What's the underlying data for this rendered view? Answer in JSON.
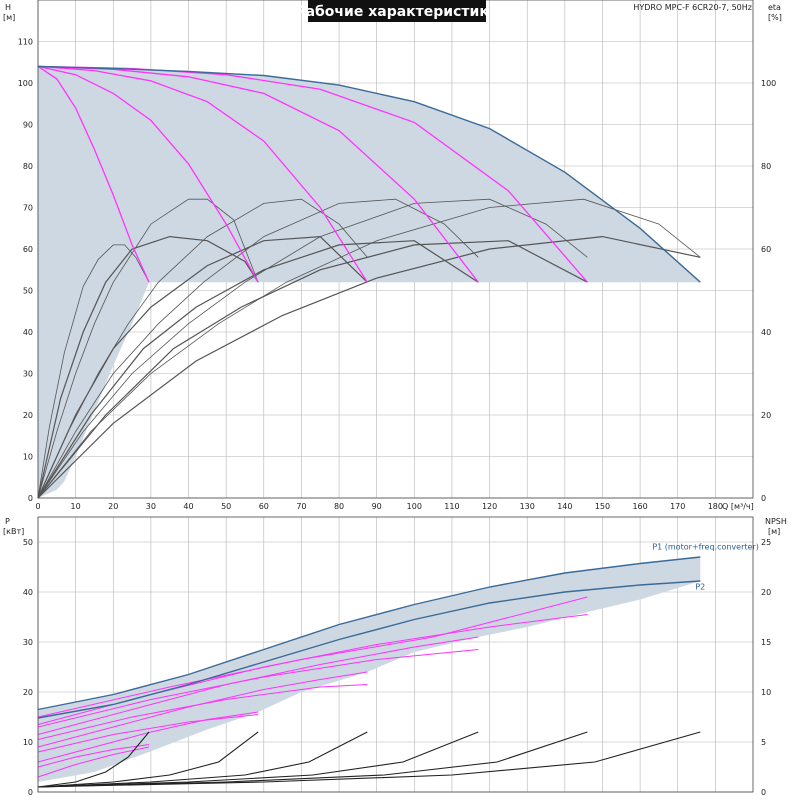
{
  "title": "Рабочие характеристики",
  "model": "HYDRO MPC-F 6CR20-7, 50Hz",
  "colors": {
    "envelope": "#cdd8e3",
    "curve_max": "#3a6a98",
    "curve_speed": "#ff33ff",
    "curve_eta": "#555555",
    "curve_npsh": "#222222",
    "grid": "#b5b5b5"
  },
  "chart_data": [
    {
      "type": "line",
      "xlabel": "Q [м³/ч]",
      "ylabel": "H [м]",
      "ylabel_right": "eta [%]",
      "xlim": [
        0,
        190
      ],
      "ylim": [
        0,
        120
      ],
      "ylim_right": [
        0,
        120
      ],
      "xticks": [
        0,
        10,
        20,
        30,
        40,
        50,
        60,
        70,
        80,
        90,
        100,
        110,
        120,
        130,
        140,
        150,
        160,
        170,
        180
      ],
      "yticks": [
        0,
        10,
        20,
        30,
        40,
        50,
        60,
        70,
        80,
        90,
        100,
        110
      ],
      "yticks_right": [
        0,
        20,
        40,
        60,
        80,
        100
      ],
      "grid": true,
      "head_envelope": {
        "upper": [
          [
            0,
            104
          ],
          [
            20,
            103.5
          ],
          [
            40,
            102.8
          ],
          [
            60,
            101.8
          ],
          [
            80,
            99.5
          ],
          [
            100,
            95.5
          ],
          [
            120,
            89
          ],
          [
            140,
            78.5
          ],
          [
            160,
            65
          ],
          [
            176,
            52
          ]
        ],
        "lower": [
          [
            176,
            52
          ],
          [
            29.5,
            52
          ],
          [
            25,
            42
          ],
          [
            20,
            32
          ],
          [
            15,
            21
          ],
          [
            10,
            10
          ],
          [
            7,
            4
          ],
          [
            5,
            2
          ],
          [
            0,
            0
          ]
        ]
      },
      "head_max_curve": [
        [
          0,
          104
        ],
        [
          20,
          103.5
        ],
        [
          40,
          102.8
        ],
        [
          60,
          101.8
        ],
        [
          80,
          99.5
        ],
        [
          100,
          95.5
        ],
        [
          120,
          89
        ],
        [
          140,
          78.5
        ],
        [
          160,
          65
        ],
        [
          176,
          52
        ]
      ],
      "head_speed_curves": [
        [
          [
            0,
            104
          ],
          [
            5,
            101
          ],
          [
            10,
            94
          ],
          [
            15,
            84
          ],
          [
            20,
            73
          ],
          [
            25,
            61
          ],
          [
            29.5,
            52
          ]
        ],
        [
          [
            0,
            104
          ],
          [
            10,
            102
          ],
          [
            20,
            97.5
          ],
          [
            30,
            91
          ],
          [
            40,
            80.5
          ],
          [
            50,
            66
          ],
          [
            58.5,
            52
          ]
        ],
        [
          [
            0,
            104
          ],
          [
            15,
            103
          ],
          [
            30,
            100.5
          ],
          [
            45,
            95.5
          ],
          [
            60,
            86
          ],
          [
            75,
            70
          ],
          [
            87.5,
            52
          ]
        ],
        [
          [
            0,
            104
          ],
          [
            20,
            103.3
          ],
          [
            40,
            101.5
          ],
          [
            60,
            97.5
          ],
          [
            80,
            88.5
          ],
          [
            100,
            72
          ],
          [
            117,
            52
          ]
        ],
        [
          [
            0,
            104
          ],
          [
            25,
            103.5
          ],
          [
            50,
            102
          ],
          [
            75,
            98.5
          ],
          [
            100,
            90.5
          ],
          [
            125,
            74
          ],
          [
            146,
            52
          ]
        ]
      ],
      "eta_curves": [
        [
          [
            0,
            0
          ],
          [
            3,
            17
          ],
          [
            7,
            35
          ],
          [
            12,
            51
          ],
          [
            16,
            57.5
          ],
          [
            20,
            61
          ],
          [
            23,
            61
          ],
          [
            26,
            58
          ],
          [
            29.5,
            52
          ]
        ],
        [
          [
            0,
            0
          ],
          [
            5,
            16
          ],
          [
            10,
            30
          ],
          [
            15,
            42
          ],
          [
            20,
            52
          ],
          [
            30,
            66
          ],
          [
            40,
            72
          ],
          [
            45,
            72
          ],
          [
            52,
            67
          ],
          [
            58.5,
            52
          ]
        ],
        [
          [
            0,
            0
          ],
          [
            8,
            16
          ],
          [
            16,
            30
          ],
          [
            24,
            42
          ],
          [
            32,
            52
          ],
          [
            45,
            63
          ],
          [
            60,
            71
          ],
          [
            70,
            72
          ],
          [
            80,
            66
          ],
          [
            87.5,
            58
          ]
        ],
        [
          [
            0,
            0
          ],
          [
            10,
            16
          ],
          [
            20,
            30
          ],
          [
            32,
            42
          ],
          [
            44,
            52
          ],
          [
            60,
            63
          ],
          [
            80,
            71
          ],
          [
            95,
            72
          ],
          [
            108,
            66
          ],
          [
            117,
            58
          ]
        ],
        [
          [
            0,
            0
          ],
          [
            12,
            16
          ],
          [
            25,
            30
          ],
          [
            40,
            42
          ],
          [
            55,
            52
          ],
          [
            75,
            63
          ],
          [
            100,
            71
          ],
          [
            120,
            72
          ],
          [
            135,
            66
          ],
          [
            146,
            58
          ]
        ],
        [
          [
            0,
            0
          ],
          [
            14,
            16
          ],
          [
            30,
            30
          ],
          [
            48,
            42
          ],
          [
            66,
            52
          ],
          [
            90,
            62
          ],
          [
            120,
            70
          ],
          [
            145,
            72
          ],
          [
            165,
            66
          ],
          [
            176,
            58
          ]
        ],
        [
          [
            0,
            0
          ],
          [
            6,
            24
          ],
          [
            12,
            40
          ],
          [
            18,
            52
          ],
          [
            25,
            60
          ],
          [
            35,
            63
          ],
          [
            45,
            62
          ],
          [
            55,
            57
          ],
          [
            58.5,
            52
          ]
        ],
        [
          [
            0,
            0
          ],
          [
            10,
            20
          ],
          [
            20,
            36
          ],
          [
            30,
            46
          ],
          [
            45,
            56
          ],
          [
            60,
            62
          ],
          [
            75,
            63
          ],
          [
            87.5,
            52
          ]
        ],
        [
          [
            0,
            0
          ],
          [
            14,
            20
          ],
          [
            28,
            36
          ],
          [
            42,
            46
          ],
          [
            60,
            55
          ],
          [
            80,
            61
          ],
          [
            100,
            62
          ],
          [
            117,
            52
          ]
        ],
        [
          [
            0,
            0
          ],
          [
            18,
            20
          ],
          [
            36,
            36
          ],
          [
            54,
            46
          ],
          [
            75,
            55
          ],
          [
            100,
            61
          ],
          [
            125,
            62
          ],
          [
            146,
            52
          ]
        ],
        [
          [
            0,
            0
          ],
          [
            20,
            18
          ],
          [
            42,
            33
          ],
          [
            65,
            44
          ],
          [
            90,
            53
          ],
          [
            120,
            60
          ],
          [
            150,
            63
          ],
          [
            176,
            58
          ]
        ]
      ]
    },
    {
      "type": "line",
      "xlabel": "",
      "ylabel": "P [кВт]",
      "ylabel_right": "NPSH [м]",
      "xlim": [
        0,
        190
      ],
      "ylim": [
        0,
        55
      ],
      "ylim_right": [
        0,
        27.5
      ],
      "yticks": [
        0,
        10,
        20,
        30,
        40,
        50
      ],
      "yticks_right": [
        0,
        5,
        10,
        15,
        20,
        25
      ],
      "grid": true,
      "series": [
        {
          "name": "P1 (motor+freq.converter)",
          "values": [
            [
              0,
              16.5
            ],
            [
              20,
              19.5
            ],
            [
              40,
              23.5
            ],
            [
              60,
              28.5
            ],
            [
              80,
              33.5
            ],
            [
              100,
              37.5
            ],
            [
              120,
              41
            ],
            [
              140,
              43.8
            ],
            [
              160,
              45.7
            ],
            [
              176,
              47
            ]
          ]
        },
        {
          "name": "P2",
          "values": [
            [
              0,
              14.8
            ],
            [
              20,
              17.5
            ],
            [
              40,
              21.5
            ],
            [
              60,
              26
            ],
            [
              80,
              30.5
            ],
            [
              100,
              34.5
            ],
            [
              120,
              37.8
            ],
            [
              140,
              40
            ],
            [
              160,
              41.4
            ],
            [
              176,
              42.2
            ]
          ]
        }
      ],
      "power_speed_curves": [
        [
          [
            0,
            3
          ],
          [
            10,
            5.5
          ],
          [
            20,
            7.5
          ],
          [
            29.5,
            9
          ]
        ],
        [
          [
            0,
            6
          ],
          [
            15,
            9
          ],
          [
            30,
            12
          ],
          [
            45,
            14.5
          ],
          [
            58.5,
            16
          ]
        ],
        [
          [
            0,
            9
          ],
          [
            20,
            13
          ],
          [
            40,
            17
          ],
          [
            60,
            20.5
          ],
          [
            75,
            22.5
          ],
          [
            87.5,
            24
          ]
        ],
        [
          [
            0,
            11.5
          ],
          [
            25,
            16.5
          ],
          [
            50,
            21.5
          ],
          [
            75,
            25.5
          ],
          [
            100,
            29
          ],
          [
            117,
            31
          ]
        ],
        [
          [
            0,
            13.5
          ],
          [
            30,
            19.5
          ],
          [
            60,
            25
          ],
          [
            90,
            29.5
          ],
          [
            120,
            33
          ],
          [
            146,
            35.5
          ]
        ],
        [
          [
            0,
            5
          ],
          [
            10,
            7
          ],
          [
            20,
            8.5
          ],
          [
            29.5,
            9.5
          ]
        ],
        [
          [
            0,
            8
          ],
          [
            20,
            11.5
          ],
          [
            40,
            14
          ],
          [
            58.5,
            15.5
          ]
        ],
        [
          [
            0,
            10.5
          ],
          [
            25,
            15
          ],
          [
            50,
            18.5
          ],
          [
            75,
            21
          ],
          [
            87.5,
            21.5
          ]
        ],
        [
          [
            0,
            13
          ],
          [
            30,
            18.5
          ],
          [
            60,
            23
          ],
          [
            90,
            26.5
          ],
          [
            117,
            28.5
          ]
        ],
        [
          [
            0,
            15
          ],
          [
            35,
            21
          ],
          [
            70,
            26.5
          ],
          [
            105,
            31
          ],
          [
            146,
            39
          ]
        ]
      ],
      "power_envelope": {
        "upper": [
          [
            0,
            16.5
          ],
          [
            20,
            19.5
          ],
          [
            40,
            23.5
          ],
          [
            60,
            28.5
          ],
          [
            80,
            33.5
          ],
          [
            100,
            37.5
          ],
          [
            120,
            41
          ],
          [
            140,
            43.8
          ],
          [
            160,
            45.7
          ],
          [
            176,
            47
          ]
        ],
        "lower": [
          [
            176,
            42.2
          ],
          [
            160,
            38.5
          ],
          [
            146,
            36
          ],
          [
            130,
            33
          ],
          [
            117,
            31
          ],
          [
            100,
            28
          ],
          [
            87.5,
            24
          ],
          [
            70,
            20
          ],
          [
            58.5,
            16
          ],
          [
            45,
            12.5
          ],
          [
            29.5,
            8
          ],
          [
            15,
            4
          ],
          [
            0,
            2
          ]
        ]
      },
      "npsh_curves": [
        [
          [
            0,
            0.5
          ],
          [
            10,
            1
          ],
          [
            18,
            2
          ],
          [
            24,
            3.5
          ],
          [
            29.5,
            6
          ]
        ],
        [
          [
            0,
            0.5
          ],
          [
            20,
            1
          ],
          [
            35,
            1.7
          ],
          [
            48,
            3
          ],
          [
            58.5,
            6
          ]
        ],
        [
          [
            0,
            0.5
          ],
          [
            30,
            1
          ],
          [
            55,
            1.7
          ],
          [
            72,
            3
          ],
          [
            87.5,
            6
          ]
        ],
        [
          [
            0,
            0.5
          ],
          [
            40,
            1
          ],
          [
            73,
            1.7
          ],
          [
            97,
            3
          ],
          [
            117,
            6
          ]
        ],
        [
          [
            0,
            0.5
          ],
          [
            50,
            1
          ],
          [
            92,
            1.7
          ],
          [
            122,
            3
          ],
          [
            146,
            6
          ]
        ],
        [
          [
            0,
            0.5
          ],
          [
            60,
            1
          ],
          [
            110,
            1.7
          ],
          [
            148,
            3
          ],
          [
            176,
            6
          ]
        ]
      ]
    }
  ]
}
